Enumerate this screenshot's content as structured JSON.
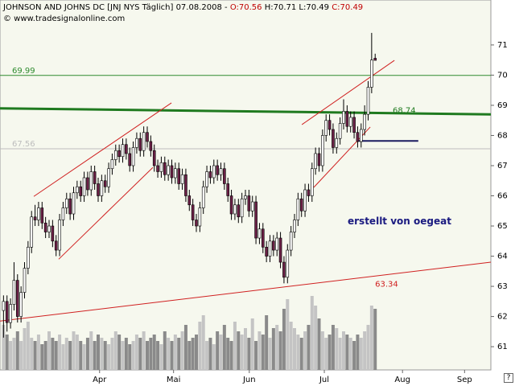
{
  "chart_data": {
    "type": "candlestick",
    "title": "JOHNSON AND JOHNS DC [JNJ NYS  Täglich] 07.08.2008 -",
    "ohlc_labels": [
      "O:70.56",
      "H:70.71",
      "L:70.49",
      "C:70.49"
    ],
    "subtitle": "© www.tradesignalonline.com",
    "annotation": "erstellt von oegeat",
    "up_color": "#ffffff",
    "down_color": "#6b2046",
    "wick_color": "#000000",
    "volume_up_color": "#c4c4c4",
    "volume_down_color": "#8a8a8a",
    "xlim": [
      -1,
      139
    ],
    "xticks": [
      {
        "value": 27.4,
        "label": "Apr"
      },
      {
        "value": 48.5,
        "label": "Mai"
      },
      {
        "value": 70.1,
        "label": "Jun"
      },
      {
        "value": 91.5,
        "label": "Jul"
      },
      {
        "value": 113.8,
        "label": "Aug"
      },
      {
        "value": 131.5,
        "label": "Sep"
      }
    ],
    "ylim": [
      60.23,
      72.49
    ],
    "yticks": [
      61,
      62,
      63,
      64,
      65,
      66,
      67,
      68,
      69,
      70,
      71
    ],
    "ohlc": [
      [
        62.2,
        62.7,
        61.3,
        62.5
      ],
      [
        62.5,
        62.7,
        61.5,
        61.8
      ],
      [
        61.8,
        62.6,
        61.6,
        62.4
      ],
      [
        62.4,
        63.8,
        62.2,
        63.2
      ],
      [
        63.2,
        63.4,
        61.8,
        62.0
      ],
      [
        62.0,
        63.0,
        61.8,
        62.8
      ],
      [
        62.8,
        63.8,
        62.6,
        63.6
      ],
      [
        63.6,
        64.5,
        63.4,
        64.3
      ],
      [
        64.3,
        65.5,
        64.1,
        65.3
      ],
      [
        65.3,
        65.7,
        65.0,
        65.2
      ],
      [
        65.2,
        65.8,
        65.0,
        65.6
      ],
      [
        65.6,
        65.8,
        64.9,
        65.1
      ],
      [
        65.1,
        65.3,
        64.6,
        64.8
      ],
      [
        64.8,
        65.2,
        64.6,
        65.0
      ],
      [
        65.0,
        65.2,
        64.3,
        64.5
      ],
      [
        64.5,
        64.7,
        64.0,
        64.2
      ],
      [
        64.2,
        65.4,
        64.0,
        65.2
      ],
      [
        65.2,
        65.8,
        65.0,
        65.6
      ],
      [
        65.6,
        66.1,
        65.4,
        65.9
      ],
      [
        65.9,
        66.1,
        65.2,
        65.4
      ],
      [
        65.4,
        66.3,
        65.2,
        66.1
      ],
      [
        66.1,
        66.5,
        65.9,
        66.3
      ],
      [
        66.3,
        66.5,
        65.8,
        66.0
      ],
      [
        66.0,
        66.8,
        65.8,
        66.6
      ],
      [
        66.6,
        66.8,
        66.0,
        66.2
      ],
      [
        66.2,
        67.0,
        66.0,
        66.8
      ],
      [
        66.8,
        67.0,
        66.2,
        66.4
      ],
      [
        66.4,
        66.6,
        65.8,
        66.0
      ],
      [
        66.0,
        66.7,
        65.8,
        66.5
      ],
      [
        66.5,
        66.7,
        66.1,
        66.3
      ],
      [
        66.3,
        67.1,
        66.1,
        66.9
      ],
      [
        66.9,
        67.4,
        66.7,
        67.2
      ],
      [
        67.2,
        67.7,
        67.0,
        67.5
      ],
      [
        67.5,
        67.7,
        67.1,
        67.3
      ],
      [
        67.3,
        67.9,
        67.1,
        67.7
      ],
      [
        67.7,
        67.9,
        67.2,
        67.4
      ],
      [
        67.4,
        67.6,
        66.8,
        67.0
      ],
      [
        67.0,
        67.8,
        66.8,
        67.6
      ],
      [
        67.6,
        68.1,
        67.4,
        67.9
      ],
      [
        67.9,
        68.1,
        67.3,
        67.5
      ],
      [
        67.5,
        68.3,
        67.3,
        68.1
      ],
      [
        68.1,
        68.3,
        67.6,
        67.8
      ],
      [
        67.8,
        68.0,
        67.3,
        67.5
      ],
      [
        67.5,
        67.7,
        66.8,
        67.0
      ],
      [
        67.0,
        67.2,
        66.6,
        66.8
      ],
      [
        66.8,
        67.3,
        66.6,
        67.1
      ],
      [
        67.1,
        67.3,
        66.5,
        66.7
      ],
      [
        66.7,
        67.2,
        66.5,
        67.0
      ],
      [
        67.0,
        67.2,
        66.4,
        66.6
      ],
      [
        66.6,
        67.1,
        66.4,
        66.9
      ],
      [
        66.9,
        67.1,
        66.2,
        66.4
      ],
      [
        66.4,
        66.9,
        66.2,
        66.7
      ],
      [
        66.7,
        66.9,
        65.8,
        66.0
      ],
      [
        66.0,
        66.2,
        65.5,
        65.7
      ],
      [
        65.7,
        65.9,
        65.0,
        65.2
      ],
      [
        65.2,
        65.4,
        64.8,
        65.0
      ],
      [
        65.0,
        65.8,
        64.8,
        65.6
      ],
      [
        65.6,
        66.5,
        65.4,
        66.3
      ],
      [
        66.3,
        67.0,
        66.1,
        66.8
      ],
      [
        66.8,
        67.0,
        66.4,
        66.6
      ],
      [
        66.6,
        67.2,
        66.4,
        67.0
      ],
      [
        67.0,
        67.2,
        66.5,
        66.7
      ],
      [
        66.7,
        67.1,
        66.5,
        66.9
      ],
      [
        66.9,
        67.1,
        66.2,
        66.4
      ],
      [
        66.4,
        66.6,
        65.8,
        66.0
      ],
      [
        66.0,
        66.2,
        65.2,
        65.4
      ],
      [
        65.4,
        65.9,
        65.2,
        65.7
      ],
      [
        65.7,
        65.9,
        65.1,
        65.3
      ],
      [
        65.3,
        66.1,
        65.1,
        65.9
      ],
      [
        65.9,
        66.2,
        65.7,
        66.0
      ],
      [
        66.0,
        66.2,
        65.3,
        65.5
      ],
      [
        65.5,
        66.0,
        65.3,
        65.8
      ],
      [
        65.8,
        66.0,
        64.4,
        64.6
      ],
      [
        64.6,
        65.1,
        64.4,
        64.9
      ],
      [
        64.9,
        65.1,
        64.1,
        64.3
      ],
      [
        64.3,
        64.5,
        63.8,
        64.0
      ],
      [
        64.0,
        64.7,
        63.8,
        64.5
      ],
      [
        64.5,
        64.7,
        64.0,
        64.2
      ],
      [
        64.2,
        64.8,
        64.0,
        64.6
      ],
      [
        64.6,
        64.8,
        63.6,
        63.8
      ],
      [
        63.8,
        64.0,
        63.1,
        63.3
      ],
      [
        63.3,
        64.4,
        63.1,
        64.2
      ],
      [
        64.2,
        65.0,
        64.0,
        64.8
      ],
      [
        64.8,
        65.4,
        64.6,
        65.2
      ],
      [
        65.2,
        66.1,
        65.0,
        65.9
      ],
      [
        65.9,
        66.1,
        65.3,
        65.5
      ],
      [
        65.5,
        66.4,
        65.3,
        66.2
      ],
      [
        66.2,
        66.4,
        65.8,
        66.0
      ],
      [
        66.0,
        67.1,
        65.8,
        66.9
      ],
      [
        66.9,
        67.6,
        66.7,
        67.4
      ],
      [
        67.4,
        67.6,
        66.8,
        67.0
      ],
      [
        67.0,
        68.2,
        66.8,
        68.0
      ],
      [
        68.0,
        68.7,
        67.8,
        68.5
      ],
      [
        68.5,
        68.7,
        68.0,
        68.2
      ],
      [
        68.2,
        68.4,
        67.4,
        67.6
      ],
      [
        67.6,
        68.1,
        67.4,
        67.9
      ],
      [
        67.9,
        68.6,
        67.7,
        68.4
      ],
      [
        68.4,
        69.2,
        68.2,
        68.8
      ],
      [
        68.8,
        69.0,
        68.1,
        68.3
      ],
      [
        68.3,
        68.8,
        68.1,
        68.6
      ],
      [
        68.6,
        68.8,
        67.9,
        68.1
      ],
      [
        68.1,
        68.3,
        67.6,
        67.8
      ],
      [
        67.8,
        68.4,
        67.6,
        68.2
      ],
      [
        68.2,
        69.0,
        68.0,
        68.7
      ],
      [
        68.7,
        69.8,
        68.5,
        69.6
      ],
      [
        69.6,
        71.4,
        69.4,
        70.5
      ],
      [
        70.56,
        70.71,
        70.49,
        70.49
      ]
    ],
    "volumes": [
      14,
      11,
      9,
      10,
      12,
      9,
      13,
      15,
      10,
      9,
      11,
      8,
      9,
      12,
      10,
      9,
      11,
      8,
      10,
      9,
      12,
      11,
      9,
      8,
      10,
      12,
      9,
      11,
      10,
      9,
      8,
      10,
      12,
      11,
      9,
      10,
      8,
      9,
      11,
      10,
      12,
      9,
      10,
      11,
      9,
      8,
      12,
      10,
      9,
      11,
      10,
      12,
      14,
      9,
      10,
      11,
      15,
      17,
      9,
      10,
      8,
      12,
      11,
      14,
      10,
      9,
      15,
      12,
      11,
      13,
      10,
      16,
      9,
      12,
      11,
      17,
      10,
      13,
      14,
      12,
      19,
      22,
      15,
      13,
      11,
      10,
      12,
      14,
      23,
      20,
      16,
      12,
      10,
      11,
      14,
      13,
      10,
      12,
      11,
      10,
      9,
      11,
      10,
      12,
      14,
      20,
      19
    ],
    "levels": [
      {
        "value": 69.99,
        "color": "#2e8b2e"
      },
      {
        "value": 67.56,
        "color": "#bdbdbd"
      }
    ],
    "trendlines": [
      {
        "x": [
          -1,
          139
        ],
        "y": [
          68.9,
          68.7
        ],
        "color": "#1f7a1f",
        "width": 3,
        "label": 68.74
      },
      {
        "x": [
          -1,
          139
        ],
        "y": [
          61.85,
          63.8
        ],
        "color": "#d02020",
        "width": 1,
        "label": 63.34
      },
      {
        "x": [
          15.75,
          42.6
        ],
        "y": [
          63.9,
          66.94
        ],
        "color": "#d02020",
        "width": 1
      },
      {
        "x": [
          8.64,
          47.9
        ],
        "y": [
          65.98,
          69.08
        ],
        "color": "#d02020",
        "width": 1
      },
      {
        "x": [
          88.5,
          104.6
        ],
        "y": [
          66.28,
          68.28
        ],
        "color": "#d02020",
        "width": 1
      },
      {
        "x": [
          85.1,
          111.5
        ],
        "y": [
          68.36,
          70.49
        ],
        "color": "#d02020",
        "width": 1
      },
      {
        "x": [
          101.1,
          118.3
        ],
        "y": [
          67.82,
          67.82
        ],
        "color": "#1a1a60",
        "width": 2
      }
    ]
  }
}
